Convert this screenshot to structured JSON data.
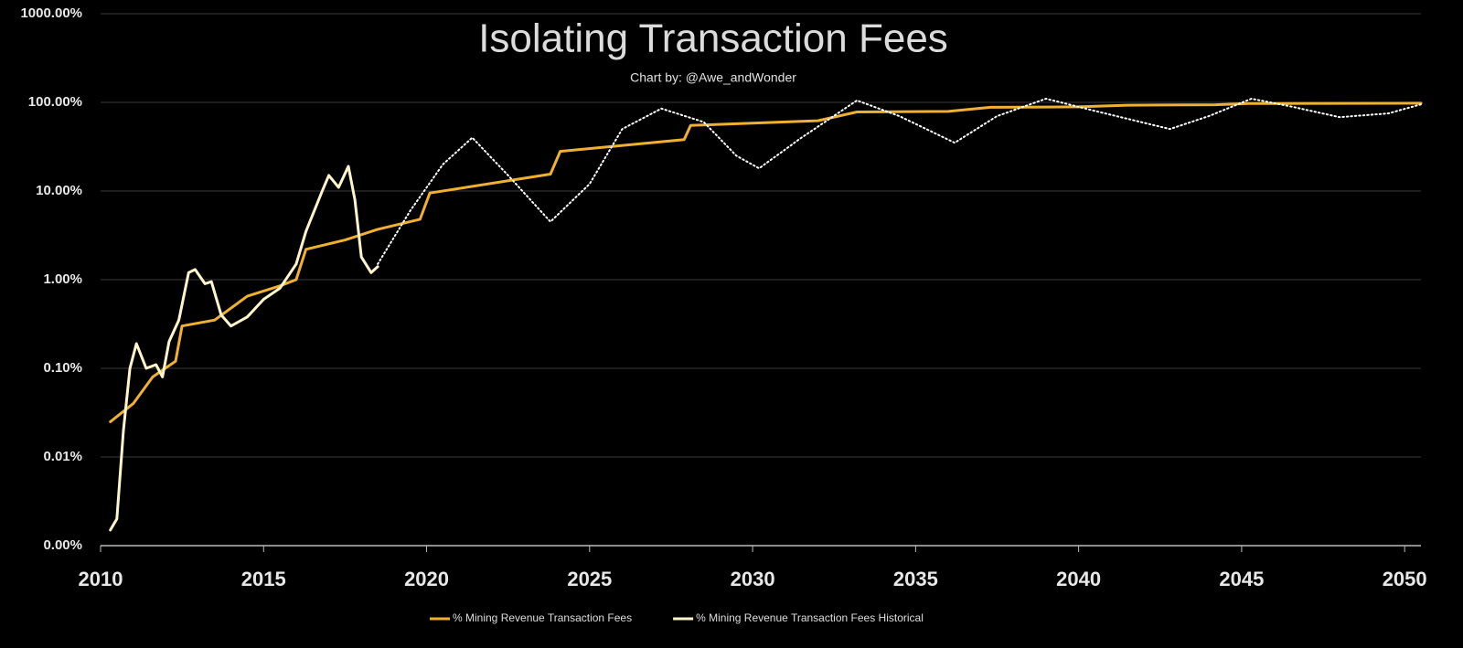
{
  "chart_data": {
    "type": "line",
    "title": "Isolating Transaction Fees",
    "subtitle": "Chart by: @Awe_andWonder",
    "log_y": true,
    "grid": true,
    "legend": "bottom",
    "xlim": [
      2010,
      2050.5
    ],
    "xticks": [
      2010,
      2015,
      2020,
      2025,
      2030,
      2035,
      2040,
      2045,
      2050
    ],
    "ylim": [
      0.001,
      1000
    ],
    "yticks": [
      {
        "value": 0.001,
        "label": "0.00%"
      },
      {
        "value": 0.01,
        "label": "0.01%"
      },
      {
        "value": 0.1,
        "label": "0.10%"
      },
      {
        "value": 1,
        "label": "1.00%"
      },
      {
        "value": 10,
        "label": "10.00%"
      },
      {
        "value": 100,
        "label": "100.00%"
      },
      {
        "value": 1000,
        "label": "1000.00%"
      }
    ],
    "series": [
      {
        "name": "% Mining Revenue Transaction Fees",
        "color": "#f0b030",
        "dash": "solid",
        "x": [
          2010.3,
          2011,
          2011.6,
          2012.3,
          2012.5,
          2013.5,
          2014.5,
          2015.5,
          2016,
          2016.3,
          2017.5,
          2018.5,
          2019.8,
          2020.1,
          2023.8,
          2024.1,
          2027.9,
          2028.1,
          2032,
          2033.2,
          2036,
          2037.3,
          2040,
          2041.5,
          2044.2,
          2045.2,
          2050.5
        ],
        "values": [
          0.025,
          0.04,
          0.08,
          0.12,
          0.3,
          0.35,
          0.65,
          0.85,
          1.0,
          2.2,
          2.8,
          3.7,
          4.8,
          9.5,
          15.5,
          28,
          38,
          55,
          62,
          78,
          79,
          88,
          89,
          93,
          94,
          97,
          98
        ]
      },
      {
        "name": "% Mining Revenue Transaction Fees Historical",
        "color": "#fff5cc",
        "dash": "solid",
        "x": [
          2010.3,
          2010.5,
          2010.7,
          2010.9,
          2011.1,
          2011.4,
          2011.7,
          2011.9,
          2012.1,
          2012.4,
          2012.7,
          2012.9,
          2013.2,
          2013.4,
          2013.7,
          2014,
          2014.5,
          2015,
          2015.5,
          2016,
          2016.3,
          2016.8,
          2017,
          2017.3,
          2017.6,
          2017.8,
          2018,
          2018.3,
          2018.5
        ],
        "values": [
          0.0015,
          0.002,
          0.02,
          0.1,
          0.19,
          0.1,
          0.11,
          0.08,
          0.2,
          0.35,
          1.2,
          1.3,
          0.9,
          0.95,
          0.4,
          0.3,
          0.38,
          0.6,
          0.8,
          1.5,
          3.5,
          10,
          15,
          11,
          19,
          8,
          1.8,
          1.2,
          1.4
        ]
      },
      {
        "color": "#ffffff",
        "dash": "dotted",
        "x": [
          2018.5,
          2019.5,
          2020.5,
          2021.4,
          2022.5,
          2023.8,
          2025,
          2026,
          2027.2,
          2028.5,
          2029.5,
          2030.2,
          2031.5,
          2033.2,
          2034.5,
          2036.2,
          2037.5,
          2039,
          2040.5,
          2042.8,
          2044,
          2045.3,
          2046.5,
          2048,
          2049.5,
          2050.5
        ],
        "values": [
          1.5,
          6,
          20,
          40,
          15,
          4.5,
          12,
          50,
          85,
          60,
          25,
          18,
          40,
          105,
          70,
          35,
          70,
          110,
          80,
          50,
          70,
          110,
          90,
          68,
          75,
          95
        ]
      }
    ]
  }
}
